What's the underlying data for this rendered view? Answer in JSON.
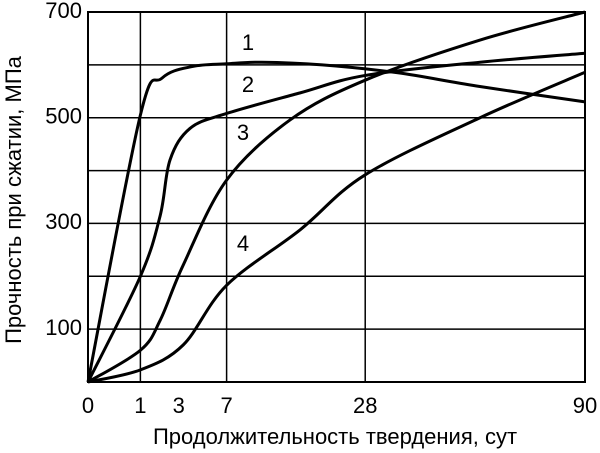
{
  "chart_data": {
    "type": "line",
    "xlabel": "Продолжительность твердения, сут",
    "ylabel": "Прочность при сжатии, МПа",
    "xscale": "sqrt",
    "xlim": [
      0,
      90
    ],
    "xticks": [
      0,
      1,
      3,
      7,
      28,
      90
    ],
    "xgridlines": [
      1,
      7,
      28
    ],
    "ylim": [
      0,
      700
    ],
    "yticks": [
      100,
      300,
      500,
      700
    ],
    "ygridlines": [
      100,
      200,
      300,
      400,
      500,
      600
    ],
    "color": "#000000",
    "series": [
      {
        "name": "1",
        "x": [
          0,
          1,
          2,
          4,
          7,
          11,
          20,
          35,
          55,
          90
        ],
        "values": [
          0,
          505,
          575,
          597,
          602,
          605,
          600,
          585,
          560,
          530
        ]
      },
      {
        "name": "2",
        "x": [
          0,
          1,
          1.9,
          2.45,
          3.8,
          7,
          16.4,
          28,
          56,
          90
        ],
        "values": [
          0,
          200,
          315,
          420,
          480,
          508,
          547,
          580,
          605,
          622
        ]
      },
      {
        "name": "3",
        "x": [
          0,
          1,
          1.9,
          3.3,
          7,
          14.9,
          28,
          56,
          90
        ],
        "values": [
          0,
          60,
          117,
          221,
          382,
          496,
          571,
          647,
          700
        ]
      },
      {
        "name": "4",
        "x": [
          0,
          1,
          3.3,
          7,
          16.4,
          28,
          56,
          90
        ],
        "values": [
          0,
          23,
          70,
          183,
          288,
          392,
          500,
          586
        ]
      }
    ]
  }
}
